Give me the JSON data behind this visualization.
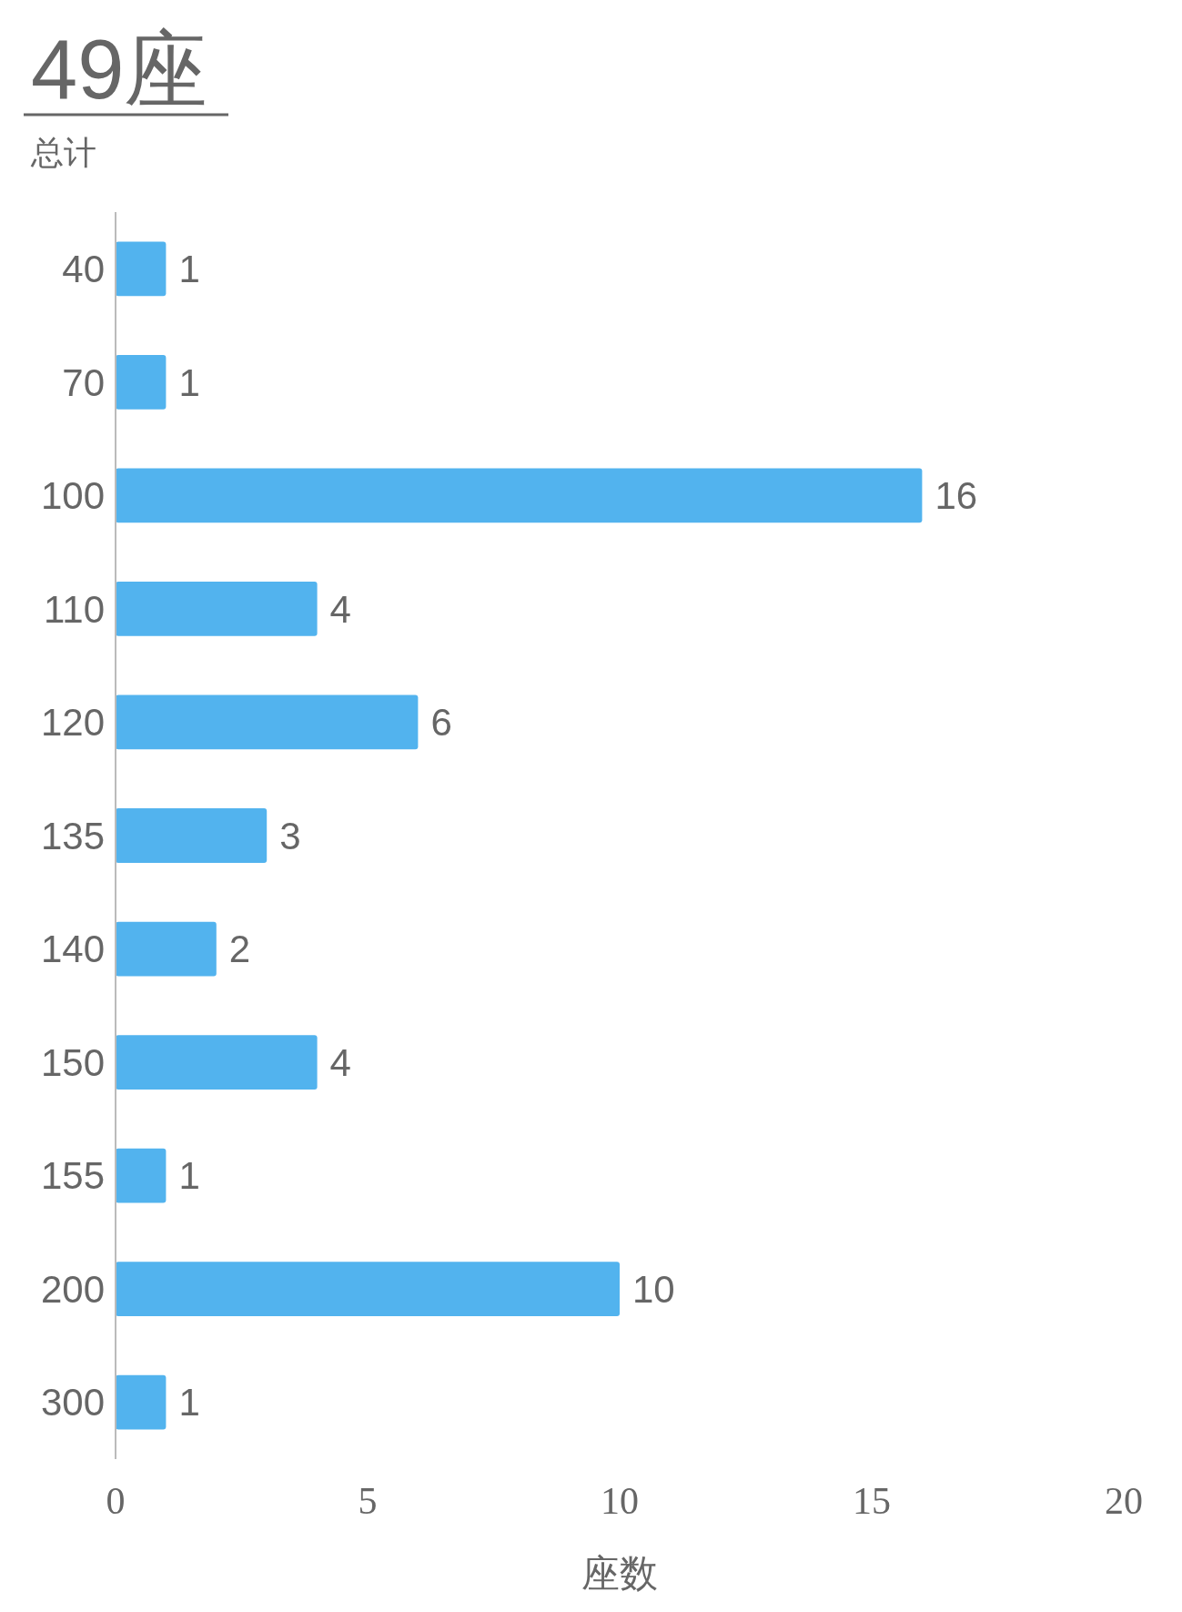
{
  "chart_data": {
    "type": "bar",
    "orientation": "horizontal",
    "title": "49座",
    "subtitle": "总计",
    "xlabel": "座数",
    "categories": [
      "40",
      "70",
      "100",
      "110",
      "120",
      "135",
      "140",
      "150",
      "155",
      "200",
      "300"
    ],
    "values": [
      1,
      1,
      16,
      4,
      6,
      3,
      2,
      4,
      1,
      10,
      1
    ],
    "color": "#52b3ee",
    "xlim": [
      0,
      20
    ],
    "xticks": [
      0,
      5,
      10,
      15,
      20
    ],
    "data_labels": true,
    "grid": false
  }
}
